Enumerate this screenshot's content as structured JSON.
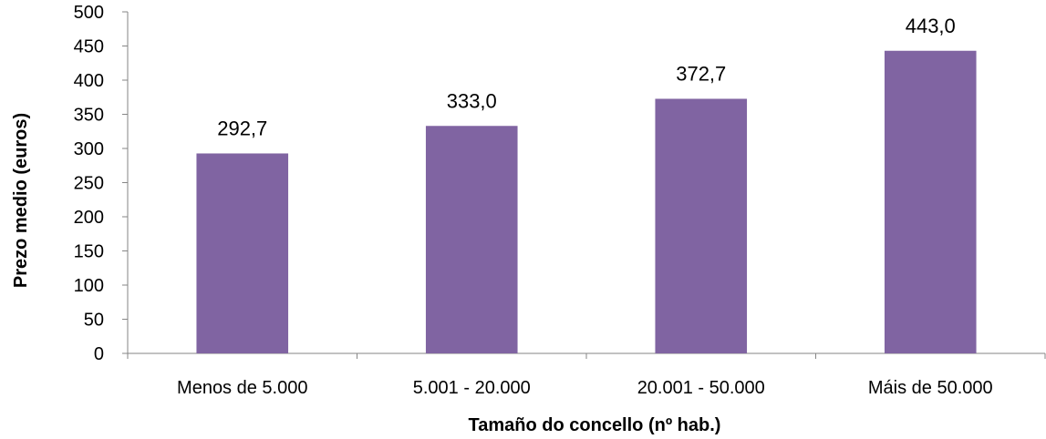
{
  "chart_data": {
    "type": "bar",
    "categories": [
      "Menos de 5.000",
      "5.001 - 20.000",
      "20.001 - 50.000",
      "Máis de 50.000"
    ],
    "values": [
      292.7,
      333.0,
      372.7,
      443.0
    ],
    "data_labels": [
      "292,7",
      "333,0",
      "372,7",
      "443,0"
    ],
    "title": "",
    "xlabel": "Tamaño do concello (nº hab.)",
    "ylabel": "Prezo medio (euros)",
    "ylim": [
      0,
      500
    ],
    "yticks": [
      "0",
      "50",
      "100",
      "150",
      "200",
      "250",
      "300",
      "350",
      "400",
      "450",
      "500"
    ],
    "grid": false,
    "legend": "none",
    "bar_color": "#8064A2"
  }
}
